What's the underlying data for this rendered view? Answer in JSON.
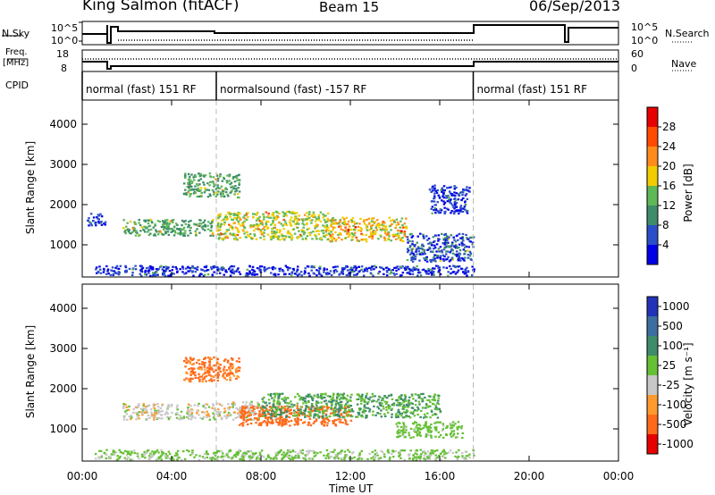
{
  "header": {
    "station": "King Salmon (fitACF)",
    "beam": "Beam 15",
    "date": "06/Sep/2013"
  },
  "side_labels": {
    "nsky": "N.Sky",
    "nsky_ticks": [
      "10^5",
      "10^0"
    ],
    "nsearch": "N.Search",
    "nsearch_ticks": [
      "10^5",
      "10^0"
    ],
    "freq": "Freq.",
    "freq_unit": "[MHz]",
    "freq_ticks": [
      "18",
      "8"
    ],
    "nave": "Nave",
    "nave_ticks": [
      "60",
      "0"
    ],
    "cpid": "CPID"
  },
  "cpid_segments": [
    {
      "label": "normal (fast) 151 RF",
      "start_h": 0.0,
      "end_h": 6.0
    },
    {
      "label": "normalsound (fast) -157 RF",
      "start_h": 6.0,
      "end_h": 17.5
    },
    {
      "label": "normal (fast) 151 RF",
      "start_h": 17.5,
      "end_h": 24.0
    }
  ],
  "axes": {
    "x_title": "Time UT",
    "x_ticks": [
      "00:00",
      "04:00",
      "08:00",
      "12:00",
      "16:00",
      "20:00",
      "00:00"
    ],
    "x_tick_hours": [
      0,
      4,
      8,
      12,
      16,
      20,
      24
    ],
    "y_title": "Slant Range [km]",
    "y_ticks": [
      "1000",
      "2000",
      "3000",
      "4000"
    ],
    "y_tick_values": [
      1000,
      2000,
      3000,
      4000
    ],
    "ylim": [
      200,
      4600
    ],
    "xlim": [
      0,
      24
    ]
  },
  "colorbars": {
    "power": {
      "label": "Power [dB]",
      "ticks": [
        "4",
        "8",
        "12",
        "16",
        "20",
        "24",
        "28"
      ],
      "colors": [
        "#0000e6",
        "#2b4fc8",
        "#3e8c6a",
        "#5fb856",
        "#f0cc00",
        "#ff8c1a",
        "#ff4a00",
        "#e60000"
      ]
    },
    "velocity": {
      "label": "Velocity [m s⁻¹]",
      "ticks": [
        "1000",
        "500",
        "100",
        "25",
        "-25",
        "-100",
        "-500",
        "-1000"
      ],
      "colors": [
        "#2233b8",
        "#3c6fa0",
        "#3e8c6a",
        "#66c035",
        "#c8c8c8",
        "#ff9b2e",
        "#ff6a1a",
        "#e60000"
      ]
    }
  },
  "chart_data": {
    "type": "heatmap",
    "title": "King Salmon (fitACF)",
    "xlabel": "Time UT",
    "ylabel": "Slant Range [km]",
    "xlim": [
      0,
      24
    ],
    "ylim": [
      200,
      4600
    ],
    "panels": [
      {
        "name": "Power [dB]",
        "scatter_regions": [
          {
            "t": [
              1.8,
              5.9
            ],
            "r": [
              1250,
              1650
            ],
            "value": 14
          },
          {
            "t": [
              6.0,
              11.0
            ],
            "r": [
              1150,
              1850
            ],
            "value": 18
          },
          {
            "t": [
              11.0,
              14.5
            ],
            "r": [
              1100,
              1700
            ],
            "value": 20
          },
          {
            "t": [
              14.5,
              17.5
            ],
            "r": [
              600,
              1300
            ],
            "value": 8
          },
          {
            "t": [
              4.5,
              7.0
            ],
            "r": [
              2200,
              2800
            ],
            "value": 14
          },
          {
            "t": [
              15.5,
              17.3
            ],
            "r": [
              1800,
              2500
            ],
            "value": 6
          },
          {
            "t": [
              0.2,
              1.0
            ],
            "r": [
              1500,
              1800
            ],
            "value": 6
          },
          {
            "t": [
              0.5,
              17.5
            ],
            "r": [
              250,
              500
            ],
            "value": 6
          }
        ]
      },
      {
        "name": "Velocity [m s-1]",
        "scatter_regions": [
          {
            "t": [
              1.8,
              5.9
            ],
            "r": [
              1250,
              1650
            ],
            "value": 0
          },
          {
            "t": [
              6.0,
              8.0
            ],
            "r": [
              1250,
              1700
            ],
            "value": 0
          },
          {
            "t": [
              7.0,
              12.0
            ],
            "r": [
              1100,
              1600
            ],
            "value": -150
          },
          {
            "t": [
              8.0,
              16.0
            ],
            "r": [
              1300,
              1900
            ],
            "value": 100
          },
          {
            "t": [
              14.0,
              17.0
            ],
            "r": [
              800,
              1200
            ],
            "value": 60
          },
          {
            "t": [
              4.5,
              7.0
            ],
            "r": [
              2200,
              2800
            ],
            "value": -120
          },
          {
            "t": [
              0.5,
              17.5
            ],
            "r": [
              250,
              500
            ],
            "value": 40
          }
        ]
      }
    ]
  }
}
